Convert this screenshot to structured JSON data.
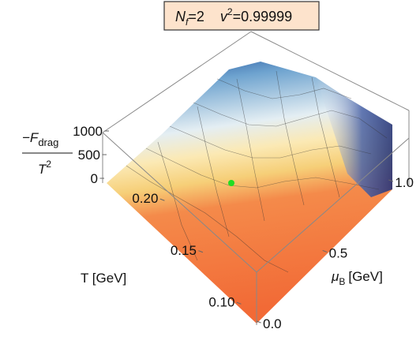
{
  "chart_data": {
    "type": "surface3d",
    "title_parts": [
      "N",
      "f",
      "=2",
      "v",
      "2",
      "=0.99999"
    ],
    "zlabel": {
      "numerator": [
        "−F",
        "drag"
      ],
      "denominator": [
        "T",
        "2"
      ]
    },
    "xlabel": "T [GeV]",
    "ylabel": [
      "μ",
      "B",
      "[GeV]"
    ],
    "xlim": [
      0.085,
      0.22
    ],
    "xticks": [
      {
        "value": 0.1,
        "label": "0.10"
      },
      {
        "value": 0.15,
        "label": "0.15"
      },
      {
        "value": 0.2,
        "label": "0.20"
      }
    ],
    "ylim": [
      0,
      1.1
    ],
    "yticks": [
      {
        "value": 0,
        "label": "0.0"
      },
      {
        "value": 0.5,
        "label": "0.5"
      },
      {
        "value": 1,
        "label": "1.0"
      }
    ],
    "zlim": [
      0,
      1000
    ],
    "zticks": [
      0,
      500,
      1000
    ]
  }
}
